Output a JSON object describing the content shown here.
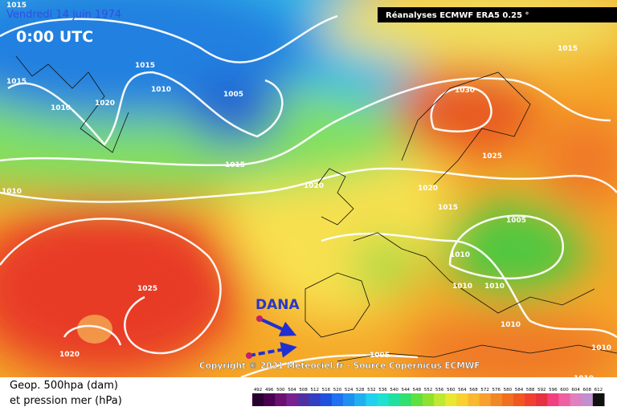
{
  "header": {
    "date": "Vendredi 14 juin 1974",
    "time": "0:00 UTC",
    "source_box": "Réanalyses ECMWF ERA5 0.25 °"
  },
  "annotation": "DANA",
  "copyright": "Copyright © 2021 Meteociel.fr - Source Copernicus ECMWF",
  "legend": {
    "line1": "Geop. 500hpa (dam)",
    "line2": "et pression mer (hPa)"
  },
  "isobar_labels": [
    "1015",
    "1015",
    "1015",
    "1010",
    "1020",
    "1005",
    "1010",
    "1015",
    "1010",
    "1020",
    "1030",
    "1025",
    "1020",
    "1015",
    "1005",
    "1010",
    "1010",
    "1010",
    "1025",
    "1020",
    "1010",
    "1005",
    "1010",
    "1010",
    "1015"
  ],
  "colorbar": {
    "labels": [
      "492",
      "496",
      "500",
      "504",
      "508",
      "512",
      "516",
      "520",
      "524",
      "528",
      "532",
      "536",
      "540",
      "544",
      "548",
      "552",
      "556",
      "560",
      "564",
      "568",
      "572",
      "576",
      "580",
      "584",
      "588",
      "592",
      "596",
      "600",
      "604",
      "608",
      "612"
    ],
    "colors": [
      "#2a0030",
      "#4a0050",
      "#6a1070",
      "#7a2090",
      "#5030a0",
      "#3040c0",
      "#2050e0",
      "#2070f0",
      "#2090f0",
      "#20b0f0",
      "#20d0f0",
      "#20e0d0",
      "#20e0a0",
      "#30e070",
      "#60e040",
      "#90e030",
      "#c0e830",
      "#e8e830",
      "#f8d030",
      "#f8b830",
      "#f8a030",
      "#f08828",
      "#f07020",
      "#f05820",
      "#f04030",
      "#e83040",
      "#f04080",
      "#f060a0",
      "#e080c0",
      "#c090d0",
      "#101010"
    ]
  }
}
